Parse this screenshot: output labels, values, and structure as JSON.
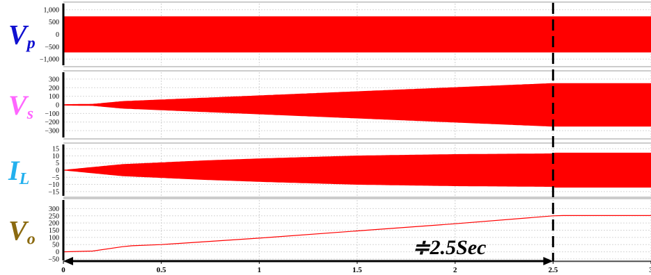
{
  "chart_data": {
    "type": "line",
    "x_ticks": [
      "0",
      "0.5",
      "1",
      "1.5",
      "2",
      "2.5",
      "3"
    ],
    "xlim": [
      0,
      3
    ],
    "grid": true,
    "series_color": "#ff0000",
    "annotation": {
      "text": "≑2.5Sec",
      "time": 2.5
    },
    "panels": [
      {
        "label": "V",
        "subscript": "p",
        "label_color": "#1010d0",
        "ylim": [
          -1250,
          1250
        ],
        "y_ticks": [
          "1,000",
          "500",
          "0",
          "−500",
          "−1,000"
        ],
        "y_tick_values": [
          1000,
          500,
          0,
          -500,
          -1000
        ],
        "envelope": {
          "t": [
            0,
            3
          ],
          "amplitude": [
            720,
            720
          ]
        }
      },
      {
        "label": "V",
        "subscript": "s",
        "label_color": "#ff66ff",
        "ylim": [
          -380,
          380
        ],
        "y_ticks": [
          "300",
          "200",
          "100",
          "0",
          "−100",
          "−200",
          "−300"
        ],
        "y_tick_values": [
          300,
          200,
          100,
          0,
          -100,
          -200,
          -300
        ],
        "envelope": {
          "t": [
            0,
            0.15,
            0.3,
            2.5,
            2.5,
            3
          ],
          "amplitude": [
            4,
            8,
            40,
            250,
            250,
            250
          ]
        }
      },
      {
        "label": "I",
        "subscript": "L",
        "label_color": "#22b0ee",
        "ylim": [
          -18,
          18
        ],
        "y_ticks": [
          "15",
          "10",
          "5",
          "0",
          "−5",
          "−10",
          "−15"
        ],
        "y_tick_values": [
          15,
          10,
          5,
          0,
          -5,
          -10,
          -15
        ],
        "envelope": {
          "t": [
            0,
            0.15,
            0.3,
            0.7,
            1.0,
            1.5,
            2.0,
            2.5,
            2.5,
            3
          ],
          "amplitude": [
            0,
            2,
            4,
            6.5,
            8,
            10,
            11,
            11.5,
            12,
            12
          ]
        }
      },
      {
        "label": "V",
        "subscript": "o",
        "label_color": "#8b6a10",
        "ylim": [
          -60,
          360
        ],
        "y_ticks": [
          "300",
          "250",
          "200",
          "150",
          "100",
          "50",
          "0",
          "−50"
        ],
        "y_tick_values": [
          300,
          250,
          200,
          150,
          100,
          50,
          0,
          -50
        ],
        "line": {
          "t": [
            0,
            0.15,
            0.3,
            0.35,
            0.5,
            1.0,
            1.5,
            2.0,
            2.5,
            2.55,
            3
          ],
          "v": [
            0,
            5,
            35,
            42,
            50,
            95,
            145,
            195,
            250,
            252,
            252
          ]
        }
      }
    ]
  }
}
